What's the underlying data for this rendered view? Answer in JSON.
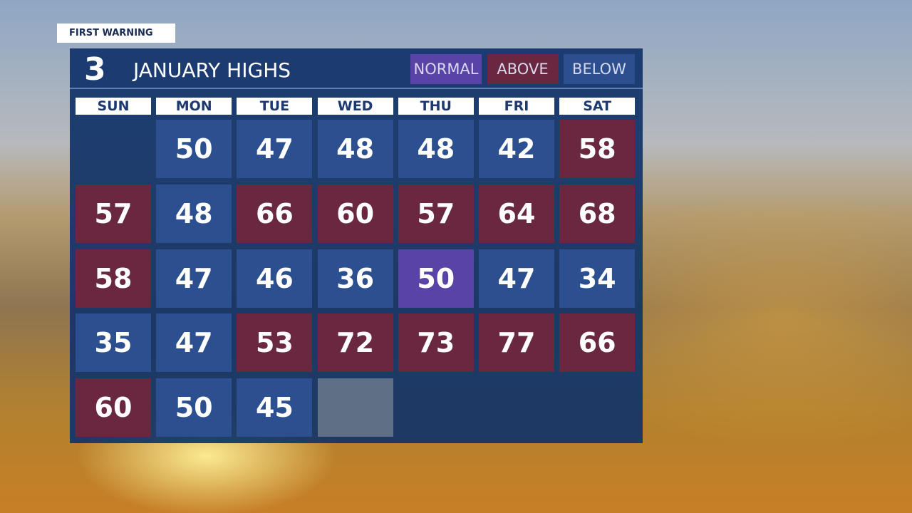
{
  "badge": "FIRST WARNING",
  "logo": "3",
  "title": "JANUARY HIGHS",
  "legend": [
    {
      "label": "NORMAL",
      "color": "#5a43a6"
    },
    {
      "label": "ABOVE",
      "color": "#69283f"
    },
    {
      "label": "BELOW",
      "color": "#2c4f90"
    }
  ],
  "days": [
    "SUN",
    "MON",
    "TUE",
    "WED",
    "THU",
    "FRI",
    "SAT"
  ],
  "weeks": [
    [
      null,
      {
        "value": 50,
        "kind": "BELOW"
      },
      {
        "value": 47,
        "kind": "BELOW"
      },
      {
        "value": 48,
        "kind": "BELOW"
      },
      {
        "value": 48,
        "kind": "BELOW"
      },
      {
        "value": 42,
        "kind": "BELOW"
      },
      {
        "value": 58,
        "kind": "ABOVE"
      }
    ],
    [
      {
        "value": 57,
        "kind": "ABOVE"
      },
      {
        "value": 48,
        "kind": "BELOW"
      },
      {
        "value": 66,
        "kind": "ABOVE"
      },
      {
        "value": 60,
        "kind": "ABOVE"
      },
      {
        "value": 57,
        "kind": "ABOVE"
      },
      {
        "value": 64,
        "kind": "ABOVE"
      },
      {
        "value": 68,
        "kind": "ABOVE"
      }
    ],
    [
      {
        "value": 58,
        "kind": "ABOVE"
      },
      {
        "value": 47,
        "kind": "BELOW"
      },
      {
        "value": 46,
        "kind": "BELOW"
      },
      {
        "value": 36,
        "kind": "BELOW"
      },
      {
        "value": 50,
        "kind": "NORMAL"
      },
      {
        "value": 47,
        "kind": "BELOW"
      },
      {
        "value": 34,
        "kind": "BELOW"
      }
    ],
    [
      {
        "value": 35,
        "kind": "BELOW"
      },
      {
        "value": 47,
        "kind": "BELOW"
      },
      {
        "value": 53,
        "kind": "ABOVE"
      },
      {
        "value": 72,
        "kind": "ABOVE"
      },
      {
        "value": 73,
        "kind": "ABOVE"
      },
      {
        "value": 77,
        "kind": "ABOVE"
      },
      {
        "value": 66,
        "kind": "ABOVE"
      }
    ],
    [
      {
        "value": 60,
        "kind": "ABOVE"
      },
      {
        "value": 50,
        "kind": "BELOW"
      },
      {
        "value": 45,
        "kind": "BELOW"
      }
    ]
  ]
}
